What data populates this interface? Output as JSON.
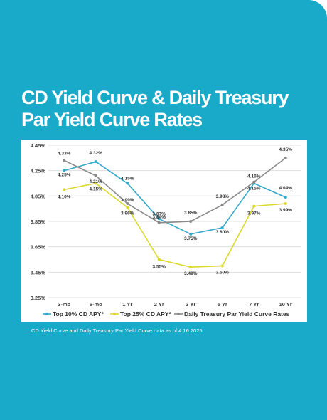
{
  "title": "CD Yield Curve & Daily Treasury Par Yield Curve Rates",
  "caption": "CD Yield Curve and Daily Treasury Par Yield Curve data as of 4.16.2025",
  "colors": {
    "background": "#19a9c9",
    "top10": "#34a9c9",
    "top25": "#dcd92c",
    "treasury": "#8a8a8a"
  },
  "chart_data": {
    "type": "line",
    "categories": [
      "3-mo",
      "6-mo",
      "1 Yr",
      "2 Yr",
      "3 Yr",
      "5 Yr",
      "7 Yr",
      "10 Yr"
    ],
    "ylim": [
      3.25,
      4.45
    ],
    "yticks": [
      "4.45%",
      "4.25%",
      "4.05%",
      "3.85%",
      "3.65%",
      "3.45%",
      "3.25%"
    ],
    "ytick_values": [
      4.45,
      4.25,
      4.05,
      3.85,
      3.65,
      3.45,
      3.25
    ],
    "grid": true,
    "legend_position": "bottom",
    "series": [
      {
        "name": "Top 10% CD APY*",
        "color": "#34a9c9",
        "values": [
          4.25,
          4.32,
          4.15,
          3.87,
          3.75,
          3.8,
          4.15,
          4.04
        ],
        "labels": [
          "4.25%",
          "4.32%",
          "4.15%",
          "3.87%",
          "3.75%",
          "3.80%",
          "4.15%",
          "4.04%"
        ]
      },
      {
        "name": "Top 25% CD APY*",
        "color": "#dcd92c",
        "values": [
          4.1,
          4.15,
          3.96,
          3.55,
          3.49,
          3.5,
          3.97,
          3.99
        ],
        "labels": [
          "4.10%",
          "4.15%",
          "3.96%",
          "3.55%",
          "3.49%",
          "3.50%",
          "3.97%",
          "3.99%"
        ]
      },
      {
        "name": "Daily Treasury Par Yield Curve Rates",
        "color": "#8a8a8a",
        "values": [
          4.33,
          4.21,
          3.99,
          3.84,
          3.85,
          3.98,
          4.16,
          4.35
        ],
        "labels": [
          "4.33%",
          "4.21%",
          "3.99%",
          "3.84%",
          "3.85%",
          "3.98%",
          "4.16%",
          "4.35%"
        ]
      }
    ]
  }
}
